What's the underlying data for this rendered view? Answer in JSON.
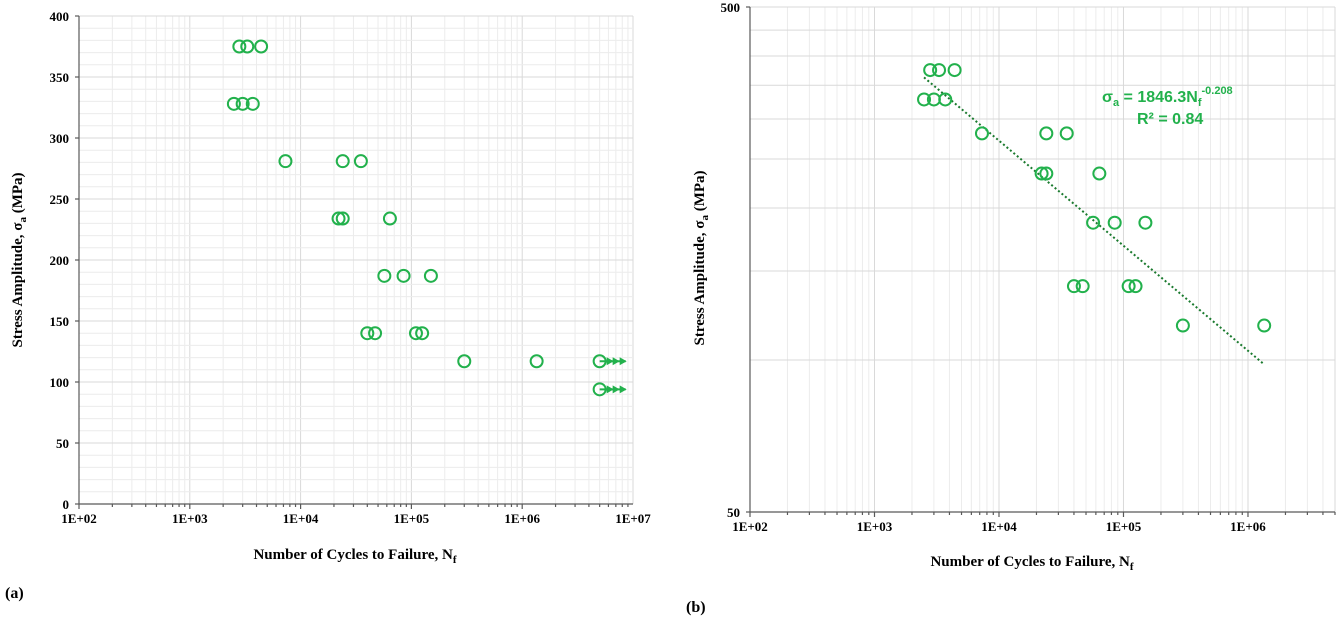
{
  "colors": {
    "marker": "#22b14c",
    "trend": "#1a7a2e",
    "grid": "#d9d9d9"
  },
  "panels": [
    {
      "label": "(a)"
    },
    {
      "label": "(b)"
    }
  ],
  "chart_data": [
    {
      "type": "scatter",
      "panel": "(a)",
      "xscale": "log",
      "xlim": [
        100,
        10000000
      ],
      "ylim": [
        0,
        400
      ],
      "xticks": [
        "1E+02",
        "1E+03",
        "1E+04",
        "1E+05",
        "1E+06",
        "1E+07"
      ],
      "yticks": [
        "0",
        "50",
        "100",
        "150",
        "200",
        "250",
        "300",
        "350",
        "400"
      ],
      "xlabel": {
        "main": "Number of Cycles to Failure, N",
        "sub": "f"
      },
      "ylabel": {
        "main": "Stress Amplitude, σ",
        "sub": "a",
        "tail": " (MPa)"
      },
      "grid": true,
      "points": [
        {
          "x": 2800,
          "y": 375
        },
        {
          "x": 3300,
          "y": 375
        },
        {
          "x": 4400,
          "y": 375
        },
        {
          "x": 2500,
          "y": 328
        },
        {
          "x": 3000,
          "y": 328
        },
        {
          "x": 3700,
          "y": 328
        },
        {
          "x": 7300,
          "y": 281
        },
        {
          "x": 24000,
          "y": 281
        },
        {
          "x": 35000,
          "y": 281
        },
        {
          "x": 22000,
          "y": 234
        },
        {
          "x": 24000,
          "y": 234
        },
        {
          "x": 64000,
          "y": 234
        },
        {
          "x": 57000,
          "y": 187
        },
        {
          "x": 85000,
          "y": 187
        },
        {
          "x": 150000,
          "y": 187
        },
        {
          "x": 40000,
          "y": 140
        },
        {
          "x": 47000,
          "y": 140
        },
        {
          "x": 110000,
          "y": 140
        },
        {
          "x": 125000,
          "y": 140
        },
        {
          "x": 300000,
          "y": 117
        },
        {
          "x": 1350000,
          "y": 117
        }
      ],
      "runouts": [
        {
          "x": 5000000,
          "y": 117
        },
        {
          "x": 5000000,
          "y": 94
        }
      ]
    },
    {
      "type": "scatter",
      "panel": "(b)",
      "xscale": "log",
      "yscale": "log",
      "xlim": [
        100,
        5000000
      ],
      "ylim": [
        50,
        500
      ],
      "xticks": [
        "1E+02",
        "1E+03",
        "1E+04",
        "1E+05",
        "1E+06"
      ],
      "yticks": [
        "50",
        "500"
      ],
      "xlabel": {
        "main": "Number of Cycles to Failure, N",
        "sub": "f"
      },
      "ylabel": {
        "main": "Stress Amplitude, σ",
        "sub": "a",
        "tail": " (MPa)"
      },
      "grid": true,
      "points": [
        {
          "x": 2800,
          "y": 375
        },
        {
          "x": 3300,
          "y": 375
        },
        {
          "x": 4400,
          "y": 375
        },
        {
          "x": 2500,
          "y": 328
        },
        {
          "x": 3000,
          "y": 328
        },
        {
          "x": 3700,
          "y": 328
        },
        {
          "x": 7300,
          "y": 281
        },
        {
          "x": 24000,
          "y": 281
        },
        {
          "x": 35000,
          "y": 281
        },
        {
          "x": 22000,
          "y": 234
        },
        {
          "x": 24000,
          "y": 234
        },
        {
          "x": 64000,
          "y": 234
        },
        {
          "x": 57000,
          "y": 187
        },
        {
          "x": 85000,
          "y": 187
        },
        {
          "x": 150000,
          "y": 187
        },
        {
          "x": 40000,
          "y": 140
        },
        {
          "x": 47000,
          "y": 140
        },
        {
          "x": 110000,
          "y": 140
        },
        {
          "x": 125000,
          "y": 140
        },
        {
          "x": 300000,
          "y": 117
        },
        {
          "x": 1350000,
          "y": 117
        }
      ],
      "trendline": {
        "type": "power",
        "a": 1846.3,
        "b": -0.208,
        "x_start": 2500,
        "x_end": 1350000
      },
      "equation": {
        "lhs": "σ",
        "lhs_sub": "a",
        "mid": " = 1846.3N",
        "mid_sub": "f",
        "exp": "-0.208"
      },
      "r2": "R² = 0.84"
    }
  ]
}
